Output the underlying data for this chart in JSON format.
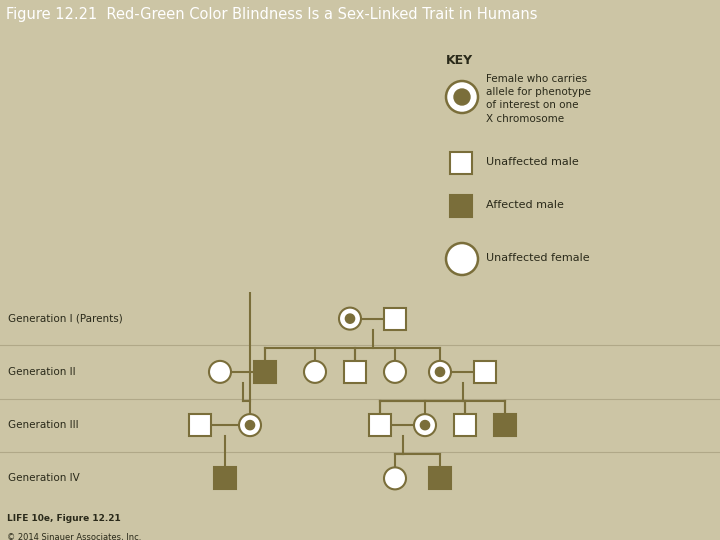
{
  "title": "Figure 12.21  Red-Green Color Blindness Is a Sex-Linked Trait in Humans",
  "title_bg": "#4a5e42",
  "title_color": "white",
  "title_fontsize": 10.5,
  "fig_bg": "#ccc5a5",
  "pedigree_bg": "#c8c0a0",
  "key_bg": "#eae5d5",
  "olive": "#7a6e3a",
  "line_color": "#7a6e3a",
  "text_color": "#2a2a1a",
  "generation_labels": [
    "Generation I (Parents)",
    "Generation II",
    "Generation III",
    "Generation IV"
  ],
  "key_label": "KEY",
  "key_item1": "Female who carries\nallele for phenotype\nof interest on one\nX chromosome",
  "key_item2": "Unaffected male",
  "key_item3": "Affected male",
  "key_item4": "Unaffected female",
  "footer_line1": "LIFE 10e, Figure 12.21",
  "footer_line2": "© 2014 Sinauer Associates, Inc."
}
